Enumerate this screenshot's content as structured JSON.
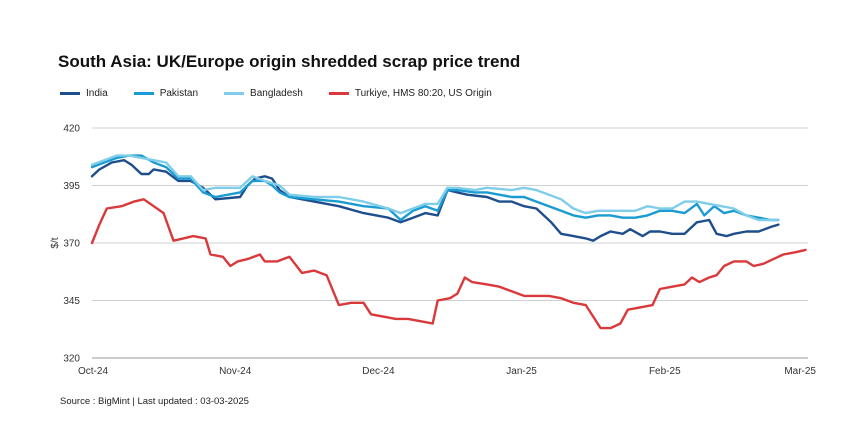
{
  "title": "South Asia: UK/Europe origin shredded scrap price trend",
  "source": "Source : BigMint | Last updated : 03-03-2025",
  "chart_data": {
    "type": "line",
    "title": "South Asia: UK/Europe origin shredded scrap price trend",
    "xlabel": "",
    "ylabel": "$/t",
    "ylim": [
      320,
      420
    ],
    "yticks": [
      320,
      345,
      370,
      395,
      420
    ],
    "xticks": [
      "Oct-24",
      "Nov-24",
      "Dec-24",
      "Jan-25",
      "Feb-25",
      "Mar-25"
    ],
    "grid": "horizontal",
    "legend_position": "top-left",
    "series": [
      {
        "name": "India",
        "color": "#1f4e8c",
        "points": [
          [
            0,
            399
          ],
          [
            0.3,
            402
          ],
          [
            0.8,
            405
          ],
          [
            1.3,
            406
          ],
          [
            1.6,
            404
          ],
          [
            2,
            400
          ],
          [
            2.3,
            400
          ],
          [
            2.5,
            402
          ],
          [
            3,
            401
          ],
          [
            3.5,
            397
          ],
          [
            4,
            397
          ],
          [
            4.5,
            394
          ],
          [
            5,
            389
          ],
          [
            6,
            390
          ],
          [
            6.3,
            395
          ],
          [
            6.6,
            398
          ],
          [
            7,
            399
          ],
          [
            7.3,
            398
          ],
          [
            7.6,
            393
          ],
          [
            8,
            390
          ],
          [
            9,
            388
          ],
          [
            10,
            386
          ],
          [
            11,
            383
          ],
          [
            12,
            381
          ],
          [
            12.5,
            379
          ],
          [
            13,
            381
          ],
          [
            13.5,
            383
          ],
          [
            14,
            382
          ],
          [
            14.4,
            393
          ],
          [
            14.8,
            392
          ],
          [
            15.2,
            391
          ],
          [
            16,
            390
          ],
          [
            16.5,
            388
          ],
          [
            17,
            388
          ],
          [
            17.5,
            386
          ],
          [
            18,
            385
          ],
          [
            18.6,
            379
          ],
          [
            19,
            374
          ],
          [
            19.5,
            373
          ],
          [
            20,
            372
          ],
          [
            20.3,
            371
          ],
          [
            20.6,
            373
          ],
          [
            21,
            375
          ],
          [
            21.5,
            374
          ],
          [
            21.8,
            376
          ],
          [
            22.3,
            373
          ],
          [
            22.6,
            375
          ],
          [
            23,
            375
          ],
          [
            23.5,
            374
          ],
          [
            24,
            374
          ],
          [
            24.5,
            379
          ],
          [
            25,
            380
          ],
          [
            25.3,
            374
          ],
          [
            25.7,
            373
          ],
          [
            26,
            374
          ],
          [
            26.5,
            375
          ],
          [
            27,
            375
          ],
          [
            27.5,
            377
          ],
          [
            27.8,
            378
          ]
        ]
      },
      {
        "name": "Pakistan",
        "color": "#1a9bd1",
        "points": [
          [
            0,
            403
          ],
          [
            0.5,
            405
          ],
          [
            1,
            407
          ],
          [
            1.5,
            408
          ],
          [
            2,
            408
          ],
          [
            2.5,
            405
          ],
          [
            3,
            403
          ],
          [
            3.5,
            398
          ],
          [
            4,
            398
          ],
          [
            4.5,
            392
          ],
          [
            5,
            390
          ],
          [
            6,
            392
          ],
          [
            6.5,
            397
          ],
          [
            7,
            397
          ],
          [
            7.3,
            395
          ],
          [
            7.6,
            392
          ],
          [
            8,
            390
          ],
          [
            9,
            389
          ],
          [
            10,
            388
          ],
          [
            11,
            386
          ],
          [
            12,
            385
          ],
          [
            12.5,
            380
          ],
          [
            13,
            384
          ],
          [
            13.5,
            386
          ],
          [
            14,
            384
          ],
          [
            14.4,
            393
          ],
          [
            14.8,
            393
          ],
          [
            15.5,
            392
          ],
          [
            16,
            392
          ],
          [
            17,
            390
          ],
          [
            17.5,
            390
          ],
          [
            18,
            388
          ],
          [
            19,
            384
          ],
          [
            19.5,
            382
          ],
          [
            20,
            381
          ],
          [
            20.5,
            382
          ],
          [
            21,
            382
          ],
          [
            21.5,
            381
          ],
          [
            22,
            381
          ],
          [
            22.5,
            382
          ],
          [
            23,
            384
          ],
          [
            23.5,
            384
          ],
          [
            24,
            383
          ],
          [
            24.5,
            387
          ],
          [
            24.8,
            382
          ],
          [
            25.2,
            386
          ],
          [
            25.6,
            383
          ],
          [
            26,
            384
          ],
          [
            26.5,
            382
          ],
          [
            27,
            381
          ],
          [
            27.5,
            380
          ],
          [
            27.8,
            380
          ]
        ]
      },
      {
        "name": "Bangladesh",
        "color": "#7fcde8",
        "points": [
          [
            0,
            404
          ],
          [
            0.5,
            406
          ],
          [
            1,
            408
          ],
          [
            1.5,
            408
          ],
          [
            2,
            407
          ],
          [
            2.5,
            406
          ],
          [
            3,
            405
          ],
          [
            3.5,
            399
          ],
          [
            4,
            399
          ],
          [
            4.5,
            393
          ],
          [
            5,
            394
          ],
          [
            6,
            394
          ],
          [
            6.5,
            399
          ],
          [
            7,
            397
          ],
          [
            7.3,
            396
          ],
          [
            7.6,
            395
          ],
          [
            8,
            391
          ],
          [
            9,
            390
          ],
          [
            10,
            390
          ],
          [
            11,
            388
          ],
          [
            12,
            385
          ],
          [
            12.5,
            383
          ],
          [
            13,
            385
          ],
          [
            13.5,
            387
          ],
          [
            14,
            387
          ],
          [
            14.4,
            394
          ],
          [
            14.8,
            394
          ],
          [
            15.5,
            393
          ],
          [
            16,
            394
          ],
          [
            17,
            393
          ],
          [
            17.5,
            394
          ],
          [
            18,
            393
          ],
          [
            19,
            389
          ],
          [
            19.5,
            385
          ],
          [
            20,
            383
          ],
          [
            20.5,
            384
          ],
          [
            21,
            384
          ],
          [
            21.5,
            384
          ],
          [
            22,
            384
          ],
          [
            22.5,
            386
          ],
          [
            23,
            385
          ],
          [
            23.5,
            385
          ],
          [
            24,
            388
          ],
          [
            24.5,
            388
          ],
          [
            25,
            387
          ],
          [
            25.5,
            386
          ],
          [
            26,
            385
          ],
          [
            26.5,
            382
          ],
          [
            27,
            380
          ],
          [
            27.5,
            380
          ],
          [
            27.8,
            380
          ]
        ]
      },
      {
        "name": "Turkiye, HMS 80:20, US Origin",
        "color": "#d9393b",
        "points": [
          [
            0,
            370
          ],
          [
            0.3,
            378
          ],
          [
            0.6,
            385
          ],
          [
            1.2,
            386
          ],
          [
            1.7,
            388
          ],
          [
            2.1,
            389
          ],
          [
            2.5,
            386
          ],
          [
            2.9,
            383
          ],
          [
            3.3,
            371
          ],
          [
            3.7,
            372
          ],
          [
            4.1,
            373
          ],
          [
            4.6,
            372
          ],
          [
            4.8,
            365
          ],
          [
            5.3,
            364
          ],
          [
            5.6,
            360
          ],
          [
            5.9,
            362
          ],
          [
            6.3,
            363
          ],
          [
            6.8,
            365
          ],
          [
            7,
            362
          ],
          [
            7.5,
            362
          ],
          [
            8,
            364
          ],
          [
            8.5,
            357
          ],
          [
            9,
            358
          ],
          [
            9.5,
            356
          ],
          [
            10,
            343
          ],
          [
            10.5,
            344
          ],
          [
            11,
            344
          ],
          [
            11.3,
            339
          ],
          [
            11.8,
            338
          ],
          [
            12.3,
            337
          ],
          [
            12.8,
            337
          ],
          [
            13.3,
            336
          ],
          [
            13.8,
            335
          ],
          [
            14,
            345
          ],
          [
            14.5,
            346
          ],
          [
            14.8,
            348
          ],
          [
            15.1,
            355
          ],
          [
            15.4,
            353
          ],
          [
            16,
            352
          ],
          [
            16.5,
            351
          ],
          [
            17,
            349
          ],
          [
            17.5,
            347
          ],
          [
            18,
            347
          ],
          [
            18.5,
            347
          ],
          [
            19,
            346
          ],
          [
            19.5,
            344
          ],
          [
            20,
            343
          ],
          [
            20.3,
            338
          ],
          [
            20.6,
            333
          ],
          [
            21,
            333
          ],
          [
            21.4,
            335
          ],
          [
            21.7,
            341
          ],
          [
            22.2,
            342
          ],
          [
            22.7,
            343
          ],
          [
            23,
            350
          ],
          [
            23.5,
            351
          ],
          [
            24,
            352
          ],
          [
            24.3,
            355
          ],
          [
            24.6,
            353
          ],
          [
            25,
            355
          ],
          [
            25.3,
            356
          ],
          [
            25.6,
            360
          ],
          [
            26,
            362
          ],
          [
            26.5,
            362
          ],
          [
            26.8,
            360
          ],
          [
            27.2,
            361
          ],
          [
            27.6,
            363
          ],
          [
            28,
            365
          ],
          [
            28.5,
            366
          ],
          [
            28.9,
            367
          ]
        ]
      }
    ]
  }
}
